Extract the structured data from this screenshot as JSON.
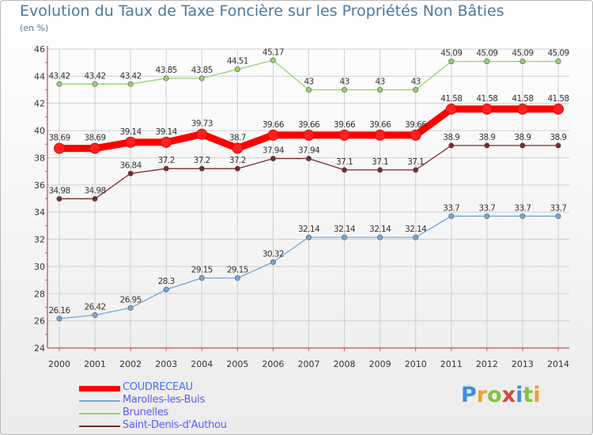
{
  "chart_title": "Evolution du Taux de Taxe Foncière sur les Propriétés Non Bâties",
  "chart_subtitle": "(en %)",
  "logo": {
    "letters": [
      {
        "ch": "P",
        "color": "#3f8ed8"
      },
      {
        "ch": "r",
        "color": "#f0a030"
      },
      {
        "ch": "o",
        "color": "#88c040"
      },
      {
        "ch": "x",
        "color": "#e04040"
      },
      {
        "ch": "i",
        "color": "#3f8ed8"
      },
      {
        "ch": "t",
        "color": "#88c040"
      },
      {
        "ch": "i",
        "color": "#f0a030"
      }
    ]
  },
  "chart_data": {
    "type": "line",
    "title": "Evolution du Taux de Taxe Foncière sur les Propriétés Non Bâties",
    "ylabel": "(en %)",
    "xlabel": "",
    "x": [
      "2000",
      "2001",
      "2002",
      "2003",
      "2004",
      "2005",
      "2006",
      "2007",
      "2008",
      "2009",
      "2010",
      "2011",
      "2012",
      "2013",
      "2014"
    ],
    "ylim": [
      24,
      46
    ],
    "yticks": [
      "24",
      "26",
      "28",
      "30",
      "32",
      "34",
      "36",
      "38",
      "40",
      "42",
      "44",
      "46"
    ],
    "grid": true,
    "legend_position": "bottom-left",
    "series": [
      {
        "name": "COUDRECEAU",
        "color": "#ff0000",
        "values": [
          38.69,
          38.69,
          39.14,
          39.14,
          39.73,
          38.7,
          39.66,
          39.66,
          39.66,
          39.66,
          39.66,
          41.58,
          41.58,
          41.58,
          41.58
        ],
        "labels": [
          "38.69",
          "38.69",
          "39.14",
          "39.14",
          "39.73",
          "38.7",
          "39.66",
          "39.66",
          "39.66",
          "39.66",
          "39.66",
          "41.58",
          "41.58",
          "41.58",
          "41.58"
        ]
      },
      {
        "name": "Marolles-les-Buis",
        "color": "#6fa8dc",
        "values": [
          26.16,
          26.42,
          26.95,
          28.3,
          29.15,
          29.15,
          30.32,
          32.14,
          32.14,
          32.14,
          32.14,
          33.7,
          33.7,
          33.7,
          33.7
        ],
        "labels": [
          "26.16",
          "26.42",
          "26.95",
          "28.3",
          "29.15",
          "29.15",
          "30.32",
          "32.14",
          "32.14",
          "32.14",
          "32.14",
          "33.7",
          "33.7",
          "33.7",
          "33.7"
        ]
      },
      {
        "name": "Brunelles",
        "color": "#93d36b",
        "values": [
          43.42,
          43.42,
          43.42,
          43.85,
          43.85,
          44.51,
          45.17,
          43,
          43,
          43,
          43,
          45.09,
          45.09,
          45.09,
          45.09
        ],
        "labels": [
          "43.42",
          "43.42",
          "43.42",
          "43.85",
          "43.85",
          "44.51",
          "45.17",
          "43",
          "43",
          "43",
          "43",
          "45.09",
          "45.09",
          "45.09",
          "45.09"
        ]
      },
      {
        "name": "Saint-Denis-d'Authou",
        "color": "#7a2a2a",
        "values": [
          34.98,
          34.98,
          36.84,
          37.2,
          37.2,
          37.2,
          37.94,
          37.94,
          37.1,
          37.1,
          37.1,
          38.9,
          38.9,
          38.9,
          38.9
        ],
        "labels": [
          "34.98",
          "34.98",
          "36.84",
          "37.2",
          "37.2",
          "37.2",
          "37.94",
          "37.94",
          "37.1",
          "37.1",
          "37.1",
          "38.9",
          "38.9",
          "38.9",
          "38.9"
        ]
      }
    ]
  }
}
